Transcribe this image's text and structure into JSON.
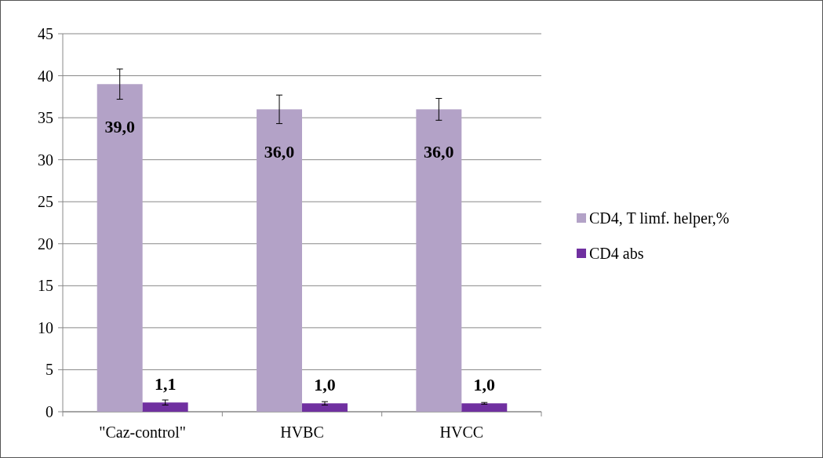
{
  "chart_data": {
    "type": "bar",
    "categories": [
      "\"Caz-control\"",
      "HVBC",
      "HVCC"
    ],
    "series": [
      {
        "name": "CD4, T limf. helper,%",
        "color": "#b3a2c7",
        "values": [
          39.0,
          36.0,
          36.0
        ],
        "errors": [
          1.8,
          1.7,
          1.3
        ],
        "value_labels": [
          "39,0",
          "36,0",
          "36,0"
        ]
      },
      {
        "name": "CD4 abs",
        "color": "#7030a0",
        "values": [
          1.1,
          1.0,
          1.0
        ],
        "errors": [
          0.3,
          0.2,
          0.1
        ],
        "value_labels": [
          "1,1",
          "1,0",
          "1,0"
        ]
      }
    ],
    "ylim": [
      0,
      45
    ],
    "yticks": [
      0,
      5,
      10,
      15,
      20,
      25,
      30,
      35,
      40,
      45
    ],
    "grid": "y",
    "legend": "right"
  }
}
